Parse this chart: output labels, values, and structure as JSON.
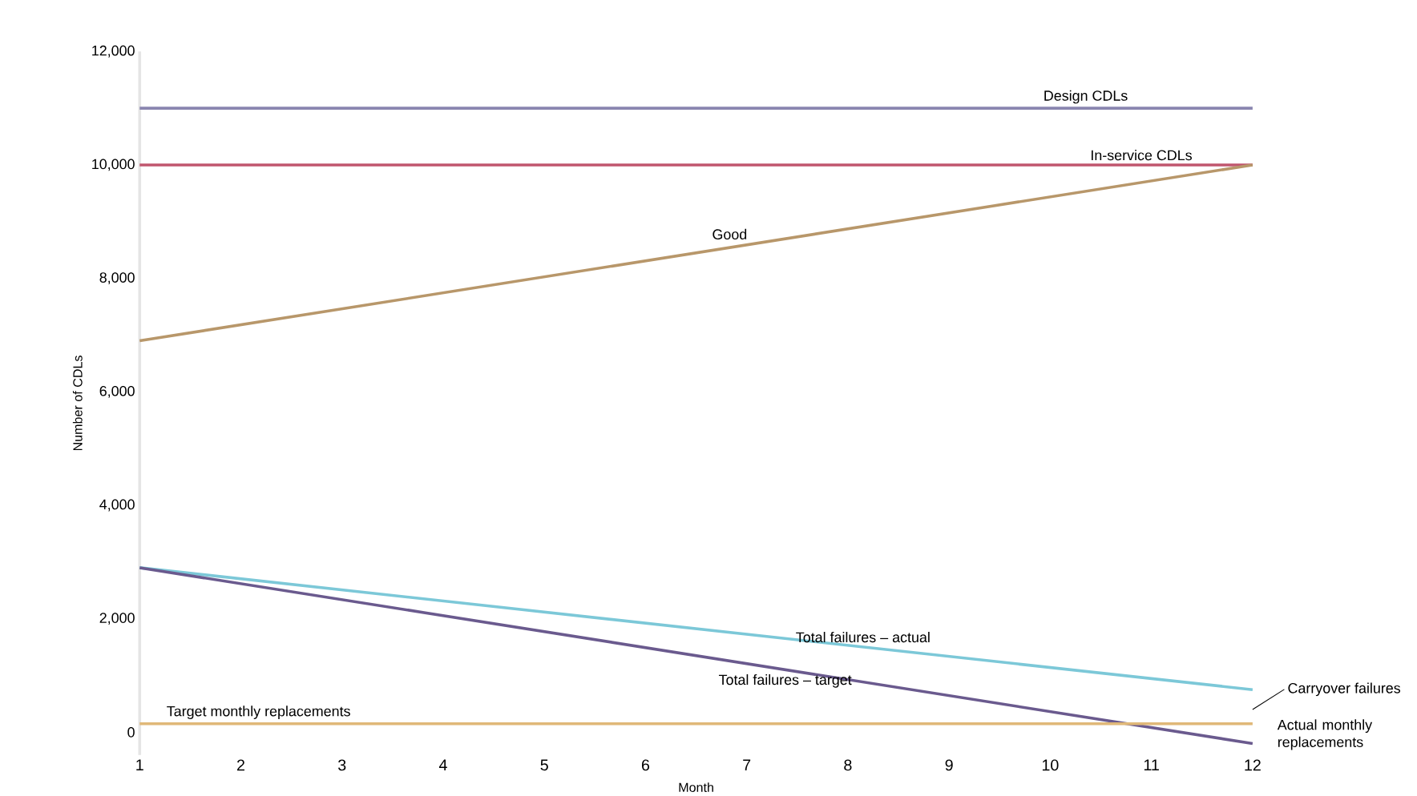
{
  "chart_data": {
    "type": "line",
    "xlabel": "Month",
    "ylabel": "Number of CDLs",
    "x": [
      1,
      12
    ],
    "xlim": [
      1,
      12
    ],
    "xticks": [
      1,
      2,
      3,
      4,
      5,
      6,
      7,
      8,
      9,
      10,
      11,
      12
    ],
    "ylim": [
      -400,
      12000
    ],
    "yticks": [
      {
        "value": 0,
        "label": "0"
      },
      {
        "value": 2000,
        "label": "2,000"
      },
      {
        "value": 4000,
        "label": "4,000"
      },
      {
        "value": 6000,
        "label": "6,000"
      },
      {
        "value": 8000,
        "label": "8,000"
      },
      {
        "value": 10000,
        "label": "10,000"
      },
      {
        "value": 12000,
        "label": "12,000"
      }
    ],
    "grid": false,
    "marker": "none",
    "line_style": "solid",
    "series": [
      {
        "name": "Design CDLs",
        "color": "#8a86b0",
        "values": [
          11000,
          11000
        ]
      },
      {
        "name": "In-service CDLs",
        "color": "#c0566e",
        "values": [
          10000,
          10000
        ]
      },
      {
        "name": "Good",
        "color": "#b8976a",
        "values": [
          6900,
          10000
        ]
      },
      {
        "name": "Total failures – actual",
        "color": "#7cc8d8",
        "values": [
          2900,
          750
        ]
      },
      {
        "name": "Total failures – target",
        "color": "#6a5a8e",
        "values": [
          2900,
          -200
        ]
      },
      {
        "name": "Target monthly replacements",
        "color": "#e0b878",
        "values": [
          150,
          150
        ]
      }
    ],
    "annotations": [
      "Carryover failures",
      "Actual monthly replacements"
    ]
  }
}
